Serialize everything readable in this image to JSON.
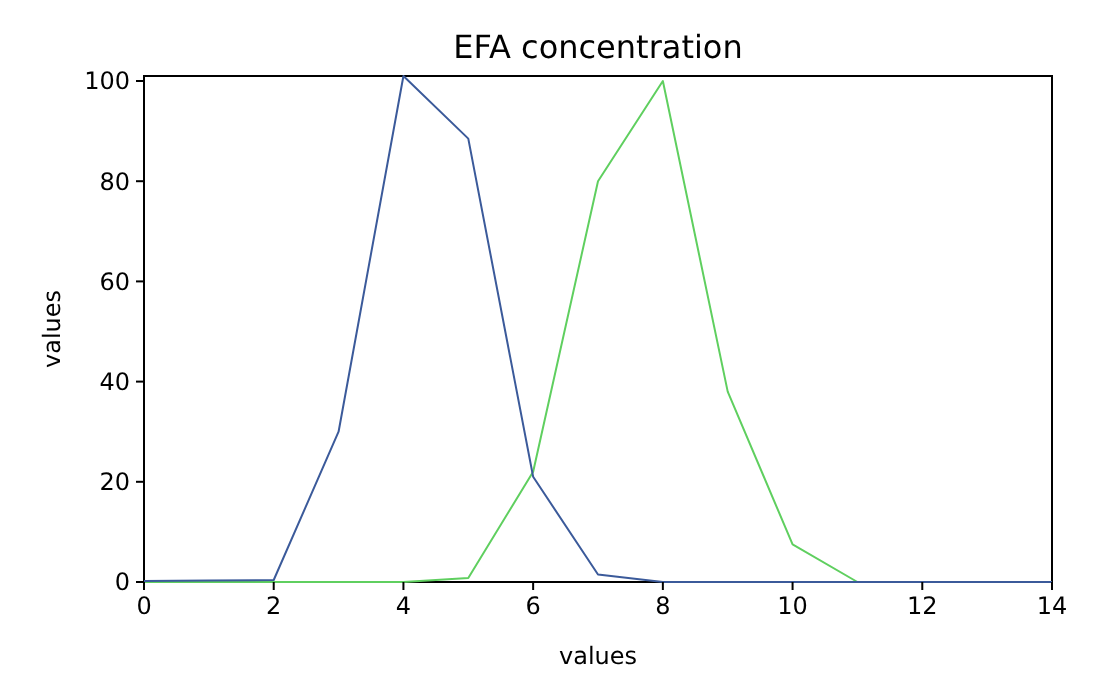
{
  "chart_data": {
    "type": "line",
    "title": "EFA concentration",
    "xlabel": "values",
    "ylabel": "values",
    "x": [
      0,
      1,
      2,
      3,
      4,
      5,
      6,
      7,
      8,
      9,
      10,
      11,
      12,
      13,
      14
    ],
    "series": [
      {
        "color": "#5fcf5f",
        "values": [
          0,
          0,
          0,
          0,
          0,
          0.8,
          22,
          80,
          100,
          38,
          7.5,
          0,
          null,
          null,
          null
        ]
      },
      {
        "color": "#3b5a9a",
        "values": [
          0.2,
          0.3,
          0.4,
          30,
          101,
          88.5,
          21,
          1.5,
          0,
          0,
          0,
          0,
          0,
          0,
          0
        ]
      }
    ],
    "xlim": [
      0,
      14
    ],
    "xticks": [
      0,
      2,
      4,
      6,
      8,
      10,
      12,
      14
    ],
    "ylim": [
      0,
      101
    ],
    "yticks": [
      0,
      20,
      40,
      60,
      80,
      100
    ],
    "grid": false
  }
}
